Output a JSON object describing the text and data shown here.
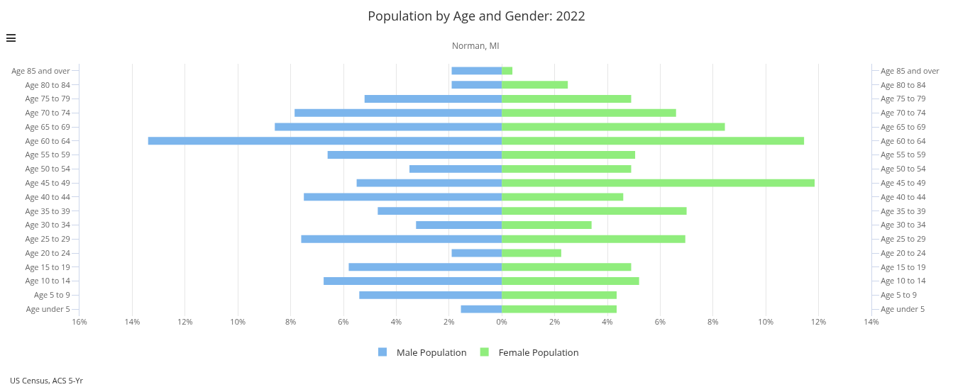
{
  "chart_data": {
    "type": "bar",
    "orientation": "horizontal",
    "title": "Population by Age and Gender: 2022",
    "subtitle": "Norman, MI",
    "categories": [
      "Age 85 and over",
      "Age 80 to 84",
      "Age 75 to 79",
      "Age 70 to 74",
      "Age 65 to 69",
      "Age 60 to 64",
      "Age 55 to 59",
      "Age 50 to 54",
      "Age 45 to 49",
      "Age 40 to 44",
      "Age 35 to 39",
      "Age 30 to 34",
      "Age 25 to 29",
      "Age 20 to 24",
      "Age 15 to 19",
      "Age 10 to 14",
      "Age 5 to 9",
      "Age under 5"
    ],
    "series": [
      {
        "name": "Male Population",
        "color": "#7cb5ec",
        "values": [
          -1.9,
          -1.9,
          -5.2,
          -7.85,
          -8.6,
          -13.4,
          -6.6,
          -3.5,
          -5.5,
          -7.5,
          -4.7,
          -3.25,
          -7.6,
          -1.9,
          -5.8,
          -6.75,
          -5.4,
          -1.55
        ]
      },
      {
        "name": "Female Population",
        "color": "#90ed7d",
        "values": [
          0.4,
          2.5,
          4.9,
          6.6,
          8.45,
          11.45,
          5.05,
          4.9,
          11.85,
          4.6,
          7.0,
          3.4,
          6.95,
          2.25,
          4.9,
          5.2,
          4.35,
          4.35
        ]
      }
    ],
    "xlim": [
      -16,
      14
    ],
    "xticks": [
      {
        "value": -16,
        "label": "16%"
      },
      {
        "value": -14,
        "label": "14%"
      },
      {
        "value": -12,
        "label": "12%"
      },
      {
        "value": -10,
        "label": "10%"
      },
      {
        "value": -8,
        "label": "8%"
      },
      {
        "value": -6,
        "label": "6%"
      },
      {
        "value": -4,
        "label": "4%"
      },
      {
        "value": -2,
        "label": "2%"
      },
      {
        "value": 0,
        "label": "0%"
      },
      {
        "value": 2,
        "label": "2%"
      },
      {
        "value": 4,
        "label": "4%"
      },
      {
        "value": 6,
        "label": "6%"
      },
      {
        "value": 8,
        "label": "8%"
      },
      {
        "value": 10,
        "label": "10%"
      },
      {
        "value": 12,
        "label": "12%"
      },
      {
        "value": 14,
        "label": "14%"
      }
    ],
    "grid": "x",
    "legend": "bottom",
    "stacked": true,
    "annotations": [
      "US Census, ACS 5-Yr"
    ]
  }
}
